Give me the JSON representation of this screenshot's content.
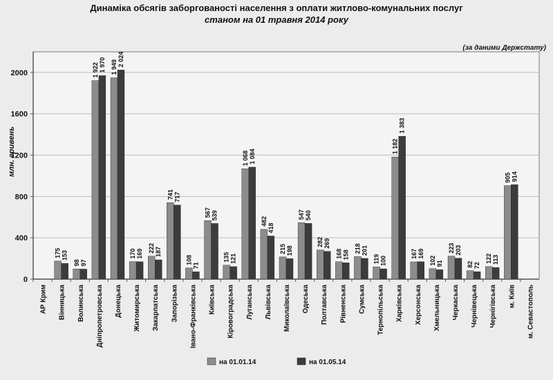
{
  "chart_data": {
    "type": "bar",
    "title": "Динаміка обсягів заборгованості населення з оплати житлово-комунальних послуг",
    "subtitle": "станом на 01 травня 2014 року",
    "source_note": "(за даними Держстату)",
    "ylabel": "млн. гривень",
    "xlabel": "",
    "ylim": [
      0,
      2200
    ],
    "yticks": [
      0,
      400,
      800,
      1200,
      1600,
      2000
    ],
    "grid": true,
    "legend_position": "bottom",
    "categories": [
      "АР Крим",
      "Вінницька",
      "Волинська",
      "Дніпропетровська",
      "Донецька",
      "Житомирська",
      "Закарпатська",
      "Запорізька",
      "Івано-Франківська",
      "Київська",
      "Кіровоградська",
      "Луганська",
      "Львівська",
      "Миколаївська",
      "Одеська",
      "Полтавська",
      "Рівненська",
      "Сумська",
      "Тернопільська",
      "Харківська",
      "Херсонська",
      "Хмельницька",
      "Черкаська",
      "Чернівецька",
      "Чернігівська",
      "м. Київ",
      "м. Севастополь"
    ],
    "series": [
      {
        "name": "на 01.01.14",
        "color": "#8c8c8c",
        "values": [
          null,
          175,
          98,
          1922,
          1949,
          170,
          222,
          741,
          108,
          567,
          135,
          1068,
          482,
          215,
          547,
          282,
          168,
          218,
          119,
          1182,
          167,
          102,
          223,
          82,
          122,
          905,
          null
        ],
        "labels": [
          "",
          "175",
          "98",
          "1 922",
          "1 949",
          "170",
          "222",
          "741",
          "108",
          "567",
          "135",
          "1 068",
          "482",
          "215",
          "547",
          "282",
          "168",
          "218",
          "119",
          "1 182",
          "167",
          "102",
          "223",
          "82",
          "122",
          "905",
          ""
        ]
      },
      {
        "name": "на 01.05.14",
        "color": "#3c3c3c",
        "values": [
          null,
          153,
          97,
          1970,
          2024,
          169,
          187,
          717,
          71,
          539,
          121,
          1084,
          418,
          198,
          540,
          269,
          158,
          201,
          100,
          1383,
          169,
          91,
          203,
          72,
          113,
          914,
          null
        ],
        "labels": [
          "",
          "153",
          "97",
          "1 970",
          "2 024",
          "169",
          "187",
          "717",
          "71",
          "539",
          "121",
          "1 084",
          "418",
          "198",
          "540",
          "269",
          "158",
          "201",
          "100",
          "1 383",
          "169",
          "91",
          "203",
          "72",
          "113",
          "914",
          ""
        ]
      }
    ]
  }
}
